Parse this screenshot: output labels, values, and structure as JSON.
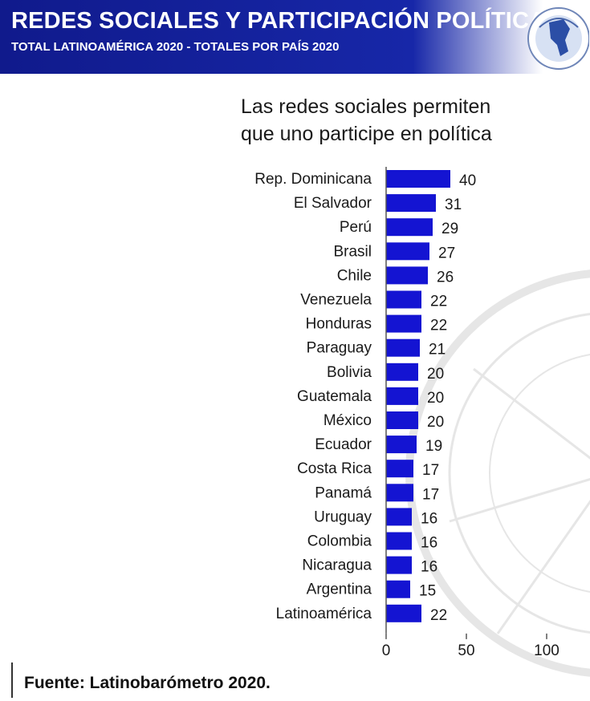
{
  "header": {
    "title": "REDES SOCIALES Y PARTICIPACIÓN POLÍTICA",
    "subtitle": "TOTAL LATINOAMÉRICA 2020 - TOTALES POR PAÍS 2020"
  },
  "chart_data": {
    "type": "bar",
    "orientation": "horizontal",
    "title_lines": [
      "Las redes sociales permiten",
      "que uno participe en política"
    ],
    "categories": [
      "Rep. Dominicana",
      "El Salvador",
      "Perú",
      "Brasil",
      "Chile",
      "Venezuela",
      "Honduras",
      "Paraguay",
      "Bolivia",
      "Guatemala",
      "México",
      "Ecuador",
      "Costa Rica",
      "Panamá",
      "Uruguay",
      "Colombia",
      "Nicaragua",
      "Argentina",
      "Latinoamérica"
    ],
    "values": [
      40,
      31,
      29,
      27,
      26,
      22,
      22,
      21,
      20,
      20,
      20,
      19,
      17,
      17,
      16,
      16,
      16,
      15,
      22
    ],
    "xlim": [
      0,
      100
    ],
    "xticks": [
      0,
      50,
      100
    ],
    "bar_color": "#1414d2",
    "data_labels": true,
    "grid": false
  },
  "footer": {
    "source": "Fuente: Latinobarómetro 2020."
  },
  "colors": {
    "banner": "#1727a8",
    "bar": "#1414d2"
  }
}
